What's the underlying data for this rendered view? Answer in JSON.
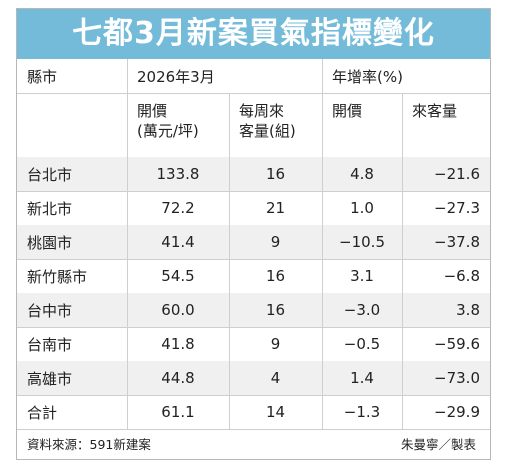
{
  "title": "七都3月新案買氣指標變化",
  "header": {
    "col_city": "縣市",
    "group_month": "2026年3月",
    "group_yoy": "年增率(%)",
    "sub_price": "開價\n(萬元/坪)",
    "sub_visitors": "每周來\n客量(組)",
    "sub_yoy_price": "開價",
    "sub_yoy_visitors": "來客量"
  },
  "rows": [
    {
      "city": "台北市",
      "price": "133.8",
      "visitors": "16",
      "yoy_price": "4.8",
      "yoy_visitors": "−21.6"
    },
    {
      "city": "新北市",
      "price": "72.2",
      "visitors": "21",
      "yoy_price": "1.0",
      "yoy_visitors": "−27.3"
    },
    {
      "city": "桃園市",
      "price": "41.4",
      "visitors": "9",
      "yoy_price": "−10.5",
      "yoy_visitors": "−37.8"
    },
    {
      "city": "新竹縣市",
      "price": "54.5",
      "visitors": "16",
      "yoy_price": "3.1",
      "yoy_visitors": "−6.8"
    },
    {
      "city": "台中市",
      "price": "60.0",
      "visitors": "16",
      "yoy_price": "−3.0",
      "yoy_visitors": "3.8"
    },
    {
      "city": "台南市",
      "price": "41.8",
      "visitors": "9",
      "yoy_price": "−0.5",
      "yoy_visitors": "−59.6"
    },
    {
      "city": "高雄市",
      "price": "44.8",
      "visitors": "4",
      "yoy_price": "1.4",
      "yoy_visitors": "−73.0"
    },
    {
      "city": "合計",
      "price": "61.1",
      "visitors": "14",
      "yoy_price": "−1.3",
      "yoy_visitors": "−29.9"
    }
  ],
  "footer": {
    "source": "資料來源：591新建案",
    "credit": "朱曼寧／製表"
  },
  "colors": {
    "title_bg": "#73bbd9",
    "shade_row": "#f0f0f0"
  }
}
